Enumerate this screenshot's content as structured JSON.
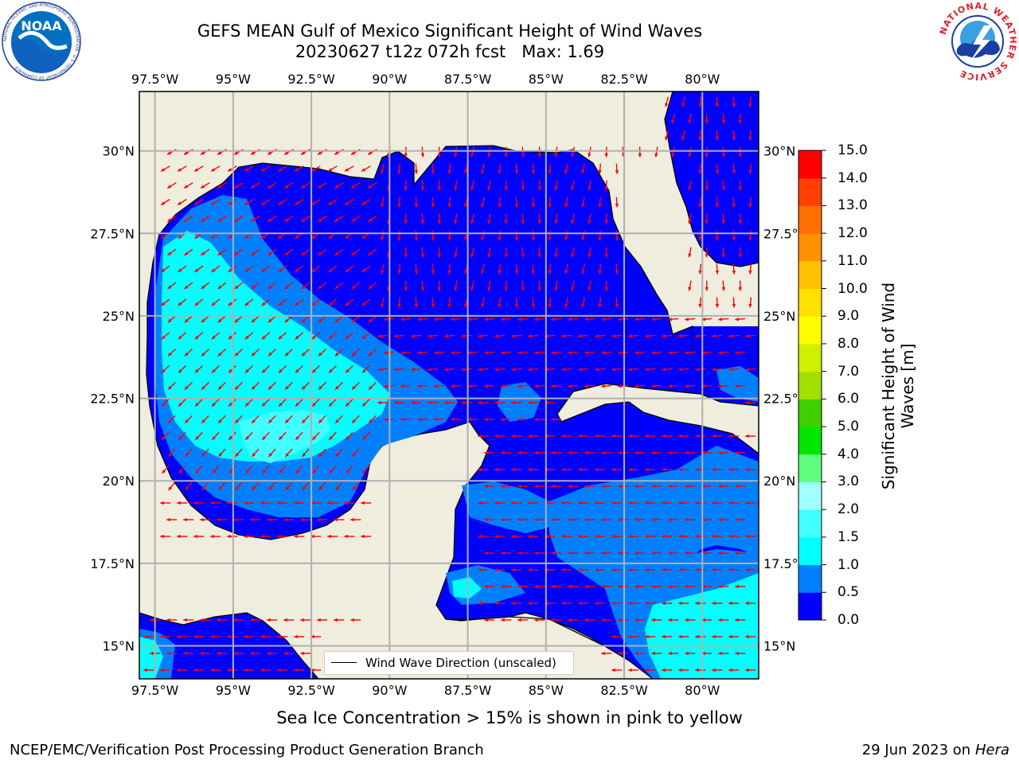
{
  "header": {
    "title_line1": "GEFS MEAN Gulf of Mexico Significant Height of Wind Waves",
    "title_line2": "20230627 t12z 072h fcst   Max: 1.69"
  },
  "logos": {
    "noaa_text": "NOAA",
    "noaa_ring": "NATIONAL OCEANIC AND ATMOSPHERIC ADMINISTRATION · U.S. DEPARTMENT OF COMMERCE",
    "nws_ring": "NATIONAL WEATHER SERVICE"
  },
  "map": {
    "lon_labels": [
      "97.5°W",
      "95°W",
      "92.5°W",
      "90°W",
      "87.5°W",
      "85°W",
      "82.5°W",
      "80°W"
    ],
    "lat_labels": [
      "30°N",
      "27.5°N",
      "25°N",
      "22.5°N",
      "20°N",
      "17.5°N",
      "15°N"
    ],
    "lon_range": [
      -98,
      -78.2
    ],
    "lat_range": [
      14,
      31.8
    ],
    "legend": "Wind Wave Direction (unscaled)",
    "colors": {
      "land": "#efedde",
      "grid": "#b0b0b0",
      "arrow": "#ff0000",
      "coast": "#000000"
    }
  },
  "colorbar": {
    "title": "Significant Height of Wind Waves [m]",
    "ticks": [
      "0.0",
      "0.5",
      "1.0",
      "1.5",
      "2.0",
      "3.0",
      "4.0",
      "5.0",
      "6.0",
      "7.0",
      "8.0",
      "9.0",
      "10.0",
      "11.0",
      "12.0",
      "13.0",
      "14.0",
      "15.0"
    ],
    "colors": [
      "#0000ff",
      "#0080ff",
      "#00ffff",
      "#40ffff",
      "#a0ffff",
      "#60ff80",
      "#00e600",
      "#40d000",
      "#a0e000",
      "#d0f000",
      "#ffff00",
      "#ffe000",
      "#ffc000",
      "#ff9000",
      "#ff7000",
      "#ff4000",
      "#ff0000"
    ]
  },
  "footer": {
    "caption": "Sea Ice Concentration > 15% is shown in pink to yellow",
    "left": "NCEP/EMC/Verification Post Processing Product Generation Branch",
    "date": "29 Jun 2023 on",
    "host": "Hera"
  }
}
